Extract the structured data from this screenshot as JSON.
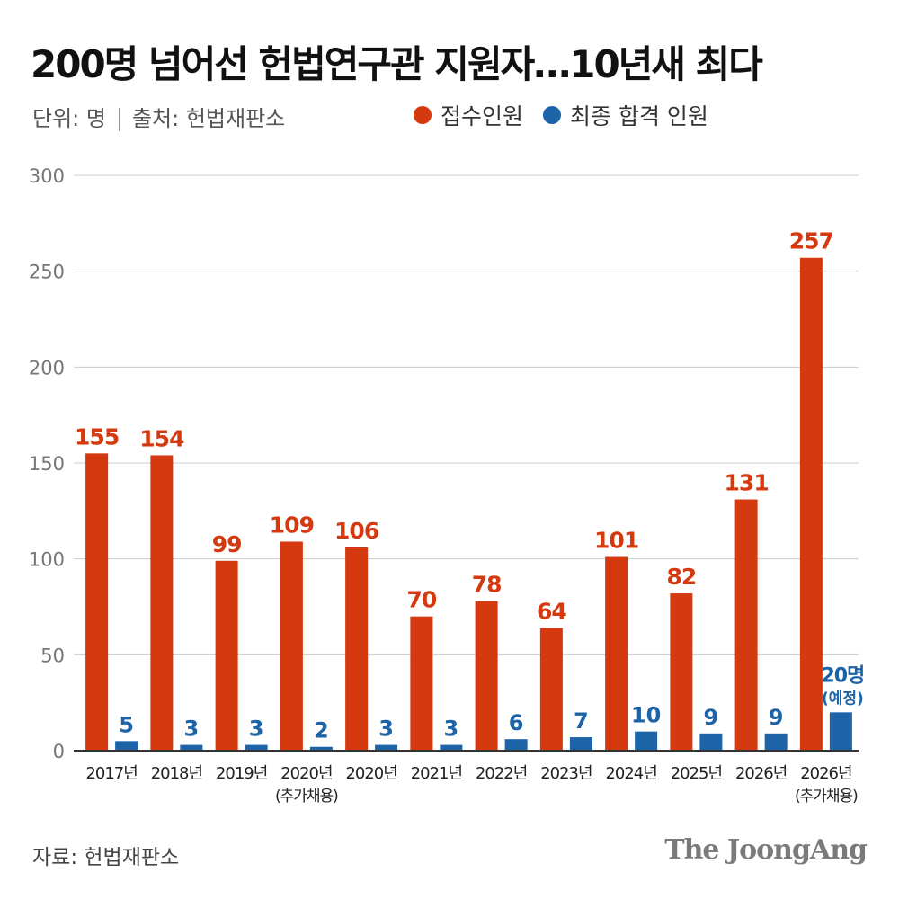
{
  "header": {
    "title": "200명 넘어선 헌법연구관 지원자…10년새 최다",
    "unit": "단위: 명",
    "source": "출처: 헌법재판소"
  },
  "footer": {
    "source": "자료: 헌법재판소",
    "brand": "The JoongAng"
  },
  "colors": {
    "applicants": "#d4390f",
    "passed": "#1c63a8",
    "grid": "#cccccc",
    "axis": "#333333"
  },
  "chart_data": {
    "type": "bar",
    "title": "200명 넘어선 헌법연구관 지원자…10년새 최다",
    "xlabel": "",
    "ylabel": "",
    "ylim": [
      0,
      300
    ],
    "yticks": [
      0,
      50,
      100,
      150,
      200,
      250,
      300
    ],
    "grid": true,
    "legend": "top-right",
    "categories": [
      "2017년",
      "2018년",
      "2019년",
      "2020년",
      "2020년",
      "2021년",
      "2022년",
      "2023년",
      "2024년",
      "2025년",
      "2026년",
      "2026년"
    ],
    "category_notes": [
      "",
      "",
      "",
      "(추가채용)",
      "",
      "",
      "",
      "",
      "",
      "",
      "",
      "(추가채용)"
    ],
    "series": [
      {
        "name": "접수인원",
        "values": [
          155,
          154,
          99,
          109,
          106,
          70,
          78,
          64,
          101,
          82,
          131,
          257
        ],
        "labels": [
          "155",
          "154",
          "99",
          "109",
          "106",
          "70",
          "78",
          "64",
          "101",
          "82",
          "131",
          "257"
        ]
      },
      {
        "name": "최종 합격 인원",
        "values": [
          5,
          3,
          3,
          2,
          3,
          3,
          6,
          7,
          10,
          9,
          9,
          20
        ],
        "labels": [
          "5",
          "3",
          "3",
          "2",
          "3",
          "3",
          "6",
          "7",
          "10",
          "9",
          "9",
          "20명"
        ],
        "label_notes": [
          "",
          "",
          "",
          "",
          "",
          "",
          "",
          "",
          "",
          "",
          "",
          "(예정)"
        ]
      }
    ]
  }
}
